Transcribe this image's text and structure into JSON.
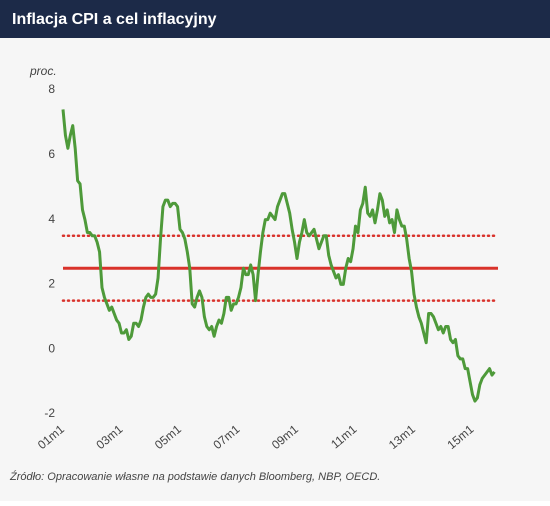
{
  "chart_data": {
    "type": "line",
    "title": "Inflacja CPI a cel inflacyjny",
    "y_label": "proc.",
    "source": "Źródło: Opracowanie własne na podstawie danych Bloomberg, NBP, OECD.",
    "categories": [
      "01m1",
      null,
      null,
      null,
      null,
      null,
      null,
      null,
      null,
      null,
      null,
      null,
      null,
      null,
      null,
      null,
      null,
      null,
      null,
      null,
      null,
      null,
      null,
      null,
      "03m1",
      null,
      null,
      null,
      null,
      null,
      null,
      null,
      null,
      null,
      null,
      null,
      null,
      null,
      null,
      null,
      null,
      null,
      null,
      null,
      null,
      null,
      null,
      null,
      "05m1",
      null,
      null,
      null,
      null,
      null,
      null,
      null,
      null,
      null,
      null,
      null,
      null,
      null,
      null,
      null,
      null,
      null,
      null,
      null,
      null,
      null,
      null,
      null,
      "07m1",
      null,
      null,
      null,
      null,
      null,
      null,
      null,
      null,
      null,
      null,
      null,
      null,
      null,
      null,
      null,
      null,
      null,
      null,
      null,
      null,
      null,
      null,
      null,
      "09m1",
      null,
      null,
      null,
      null,
      null,
      null,
      null,
      null,
      null,
      null,
      null,
      null,
      null,
      null,
      null,
      null,
      null,
      null,
      null,
      null,
      null,
      null,
      null,
      "11m1",
      null,
      null,
      null,
      null,
      null,
      null,
      null,
      null,
      null,
      null,
      null,
      null,
      null,
      null,
      null,
      null,
      null,
      null,
      null,
      null,
      null,
      null,
      null,
      "13m1",
      null,
      null,
      null,
      null,
      null,
      null,
      null,
      null,
      null,
      null,
      null,
      null,
      null,
      null,
      null,
      null,
      null,
      null,
      null,
      null,
      null,
      null,
      null,
      "15m1",
      null,
      null,
      null,
      null,
      null,
      null,
      null,
      null,
      null
    ],
    "values": [
      7.4,
      6.6,
      6.2,
      6.6,
      6.9,
      6.2,
      5.2,
      5.1,
      4.3,
      4.0,
      3.6,
      3.6,
      3.5,
      3.5,
      3.3,
      3.0,
      1.9,
      1.6,
      1.4,
      1.2,
      1.3,
      1.1,
      0.9,
      0.8,
      0.5,
      0.5,
      0.6,
      0.3,
      0.4,
      0.8,
      0.8,
      0.7,
      0.9,
      1.3,
      1.6,
      1.7,
      1.6,
      1.6,
      1.7,
      2.2,
      3.4,
      4.4,
      4.6,
      4.6,
      4.4,
      4.5,
      4.5,
      4.4,
      3.7,
      3.6,
      3.4,
      3.0,
      2.5,
      1.4,
      1.3,
      1.6,
      1.8,
      1.6,
      1.0,
      0.7,
      0.6,
      0.7,
      0.4,
      0.7,
      0.9,
      0.8,
      1.1,
      1.6,
      1.6,
      1.2,
      1.4,
      1.4,
      1.6,
      1.9,
      2.5,
      2.3,
      2.3,
      2.6,
      2.3,
      1.5,
      2.3,
      3.0,
      3.6,
      4.0,
      4.0,
      4.2,
      4.1,
      4.0,
      4.4,
      4.6,
      4.8,
      4.8,
      4.5,
      4.2,
      3.7,
      3.3,
      2.8,
      3.3,
      3.6,
      4.0,
      3.6,
      3.5,
      3.6,
      3.7,
      3.4,
      3.1,
      3.3,
      3.5,
      3.5,
      2.9,
      2.6,
      2.4,
      2.2,
      2.3,
      2.0,
      2.0,
      2.5,
      2.8,
      2.7,
      3.1,
      3.8,
      3.6,
      4.3,
      4.5,
      5.0,
      4.2,
      4.1,
      4.3,
      3.9,
      4.3,
      4.8,
      4.6,
      4.1,
      4.3,
      3.9,
      4.0,
      3.6,
      4.3,
      4.0,
      3.8,
      3.8,
      3.4,
      2.8,
      2.4,
      1.7,
      1.3,
      1.0,
      0.8,
      0.5,
      0.2,
      1.1,
      1.1,
      1.0,
      0.8,
      0.6,
      0.7,
      0.5,
      0.7,
      0.7,
      0.3,
      0.2,
      0.3,
      -0.2,
      -0.3,
      -0.3,
      -0.6,
      -0.6,
      -1.0,
      -1.4,
      -1.6,
      -1.5,
      -1.1,
      -0.9,
      -0.8,
      -0.7,
      -0.6,
      -0.8,
      -0.7
    ],
    "color": "#4e9a3a",
    "hlines": [
      {
        "value": 3.5,
        "style": "dotted"
      },
      {
        "value": 2.5,
        "style": "solid"
      },
      {
        "value": 1.5,
        "style": "dotted"
      }
    ],
    "hline_color": "#d9322b",
    "ylim": [
      -2,
      8
    ],
    "yticks": [
      -2,
      0,
      2,
      4,
      6,
      8
    ],
    "grid": false
  }
}
